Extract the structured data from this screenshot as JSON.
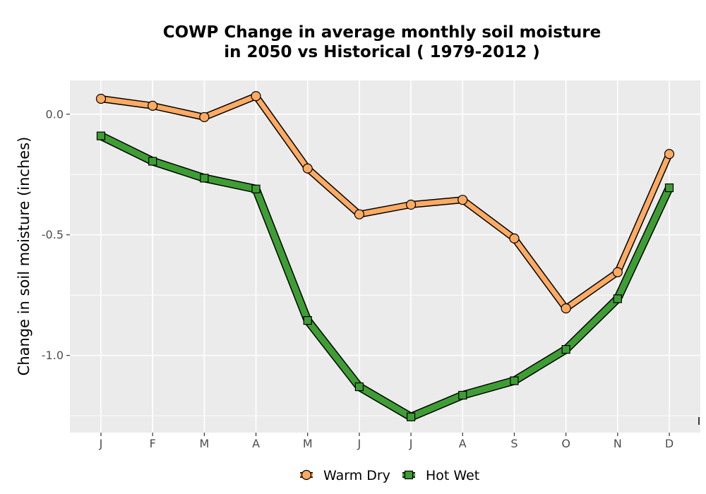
{
  "chart_data": {
    "type": "line",
    "title_line1": "COWP  Change in average monthly soil moisture",
    "title_line2": "in 2050 vs Historical ( 1979-2012 )",
    "xlabel": "",
    "ylabel": "Change in soil moisture (inches)",
    "categories": [
      "J",
      "F",
      "M",
      "A",
      "M",
      "J",
      "J",
      "A",
      "S",
      "O",
      "N",
      "D"
    ],
    "ylim": [
      -1.32,
      0.14
    ],
    "yticks": [
      0.0,
      -0.5,
      -1.0
    ],
    "ytick_labels": [
      "0.0",
      "-0.5",
      "-1.0"
    ],
    "grid": true,
    "legend_position": "bottom",
    "series": [
      {
        "name": "Warm Dry",
        "color": "#fdaa63",
        "marker": "circle",
        "values": [
          0.064,
          0.035,
          -0.012,
          0.075,
          -0.225,
          -0.415,
          -0.375,
          -0.355,
          -0.515,
          -0.805,
          -0.655,
          -0.165
        ]
      },
      {
        "name": "Hot Wet",
        "color": "#3e9e34",
        "marker": "square",
        "values": [
          -0.09,
          -0.195,
          -0.265,
          -0.31,
          -0.855,
          -1.13,
          -1.255,
          -1.165,
          -1.105,
          -0.975,
          -0.765,
          -0.305
        ]
      }
    ]
  }
}
